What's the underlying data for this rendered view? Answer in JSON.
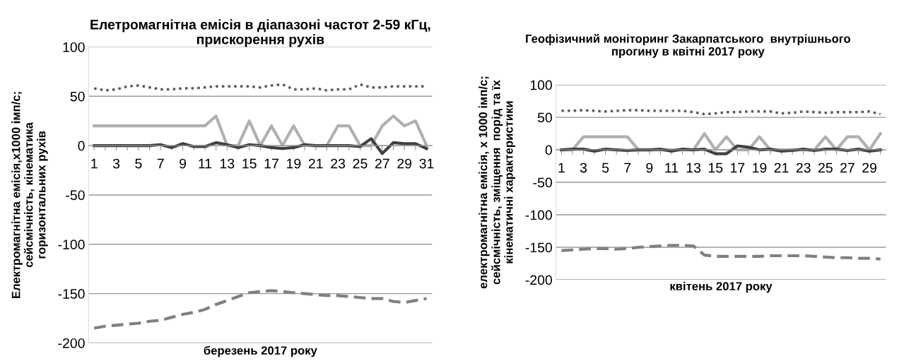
{
  "chart_data": [
    {
      "type": "line",
      "title": "Елетромагнітна емісія в діапазоні частот 2-59 кГц,\nприскорення рухів",
      "xlabel": "березень 2017 року",
      "ylabel": "Електромагнітна емісія,х1000 імп/с;\nсейсмічність, кінематика\nгоризонтальних рухів",
      "categories": [
        "1",
        null,
        "3",
        null,
        "5",
        null,
        "7",
        null,
        "9",
        null,
        "11",
        null,
        "13",
        null,
        "15",
        null,
        "17",
        null,
        "19",
        null,
        "21",
        null,
        "23",
        null,
        "25",
        null,
        "27",
        null,
        "29",
        null,
        "31"
      ],
      "ylim": [
        -200,
        100
      ],
      "yticks": [
        -200,
        -150,
        -100,
        -50,
        0,
        50,
        100
      ],
      "grid": "y",
      "marker": "none",
      "series": [
        {
          "color": "#595959",
          "line_style": "dotted",
          "values": [
            58,
            56,
            57,
            60,
            61,
            59,
            57,
            57,
            58,
            58,
            59,
            60,
            60,
            60,
            60,
            59,
            61,
            62,
            57,
            57,
            58,
            56,
            57,
            57,
            62,
            59,
            59,
            60,
            60,
            60,
            60
          ]
        },
        {
          "color": "#b0b0b0",
          "line_style": "solid",
          "values": [
            20,
            20,
            20,
            20,
            20,
            20,
            20,
            20,
            20,
            20,
            20,
            30,
            0,
            0,
            25,
            0,
            20,
            0,
            20,
            0,
            0,
            0,
            20,
            20,
            0,
            0,
            20,
            30,
            20,
            25,
            0
          ]
        },
        {
          "color": "#404040",
          "line_style": "solid",
          "values": [
            0,
            0,
            0,
            0,
            0,
            0,
            1,
            -2,
            2,
            -1,
            -1,
            3,
            1,
            -2,
            1,
            0,
            -2,
            -3,
            -2,
            1,
            0,
            0,
            0,
            0,
            -1,
            7,
            -8,
            3,
            2,
            2,
            -3
          ]
        },
        {
          "color": "#808080",
          "line_style": "dashed",
          "values": [
            -185,
            -183,
            -182,
            -181,
            -180,
            -178,
            -177,
            -174,
            -171,
            -169,
            -166,
            -161,
            -157,
            -153,
            -149,
            -148,
            -147,
            -148,
            -149,
            -150,
            -151,
            -152,
            -152,
            -153,
            -154,
            -155,
            -155,
            -158,
            -159,
            -157,
            -155
          ]
        }
      ]
    },
    {
      "type": "line",
      "title": "Геофізичний моніторинг Закарпатського  внутрішнього\nпрогину в квітні 2017 року",
      "xlabel": "квітень 2017 року",
      "ylabel": "електромагнітна емісія, х 1000 імп/с;\nсейсмічність, зміщення  порід та їх\nкінематичні характеристики",
      "categories": [
        "1",
        null,
        "3",
        null,
        "5",
        null,
        "7",
        null,
        "9",
        null,
        "11",
        null,
        "13",
        null,
        "15",
        null,
        "17",
        null,
        "19",
        null,
        "21",
        null,
        "23",
        null,
        "25",
        null,
        "27",
        null,
        "29",
        null
      ],
      "ylim": [
        -200,
        100
      ],
      "yticks": [
        -200,
        -150,
        -100,
        -50,
        0,
        50,
        100
      ],
      "grid": "y",
      "marker": "none",
      "series": [
        {
          "color": "#595959",
          "line_style": "dotted",
          "values": [
            60,
            60,
            61,
            60,
            59,
            60,
            61,
            61,
            60,
            60,
            60,
            60,
            58,
            55,
            56,
            58,
            58,
            59,
            59,
            59,
            56,
            57,
            59,
            58,
            57,
            58,
            58,
            58,
            59,
            55
          ]
        },
        {
          "color": "#b0b0b0",
          "line_style": "solid",
          "values": [
            0,
            0,
            20,
            20,
            20,
            20,
            20,
            0,
            0,
            0,
            0,
            0,
            0,
            25,
            0,
            20,
            0,
            0,
            20,
            0,
            0,
            0,
            0,
            0,
            20,
            0,
            20,
            20,
            0,
            25
          ]
        },
        {
          "color": "#404040",
          "line_style": "solid",
          "values": [
            0,
            1,
            1,
            -2,
            1,
            0,
            -1,
            0,
            0,
            1,
            -2,
            1,
            0,
            1,
            -6,
            -6,
            6,
            4,
            0,
            1,
            -2,
            -1,
            1,
            -1,
            1,
            1,
            -1,
            1,
            -2,
            0
          ]
        },
        {
          "color": "#808080",
          "line_style": "dashed",
          "values": [
            -155,
            -154,
            -153,
            -152,
            -152,
            -153,
            -152,
            -150,
            -149,
            -148,
            -147,
            -147,
            -148,
            -162,
            -164,
            -164,
            -164,
            -164,
            -164,
            -163,
            -163,
            -163,
            -163,
            -164,
            -165,
            -166,
            -166,
            -167,
            -167,
            -168
          ]
        }
      ]
    }
  ]
}
